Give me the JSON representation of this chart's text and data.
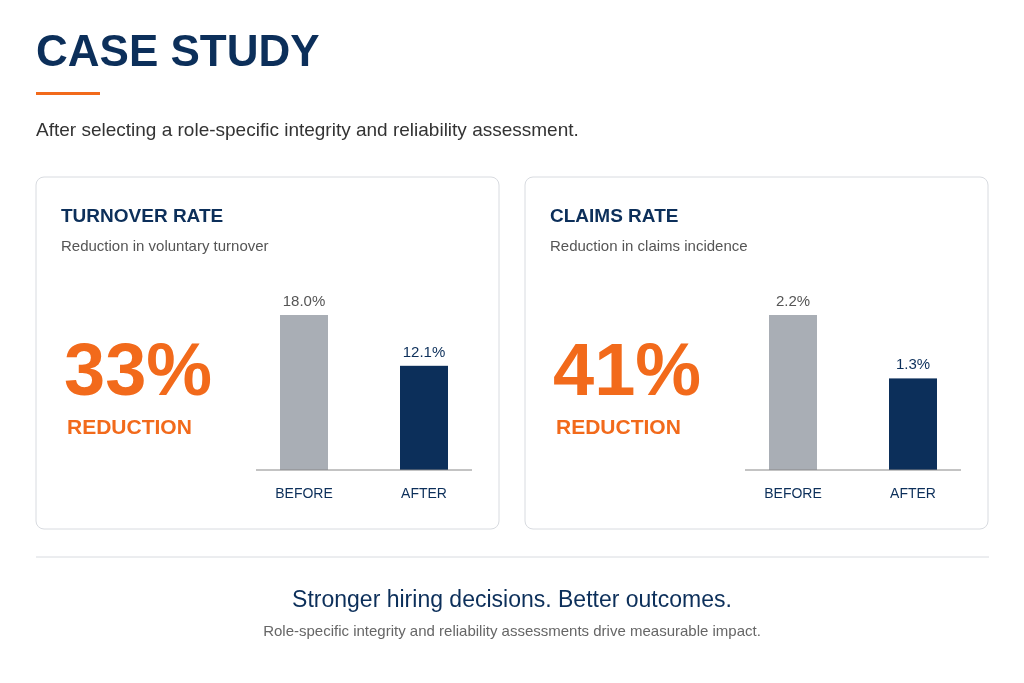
{
  "chart_data": [
    {
      "type": "other",
      "title": "CASE STUDY",
      "subtitle": "After selecting a role-specific integrity and reliability assessment."
    },
    {
      "type": "bar",
      "title": "TURNOVER RATE",
      "subtitle": "Reduction in voluntary turnover",
      "categories": [
        "BEFORE",
        "AFTER"
      ],
      "values": [
        18.0,
        12.1
      ],
      "colors": [
        "#a9aeb5",
        "#0c2f5a"
      ],
      "value_labels": [
        "18.0%",
        "12.1%"
      ],
      "annotations": [
        "33%",
        "REDUCTION"
      ]
    },
    {
      "type": "bar",
      "title": "CLAIMS RATE",
      "subtitle": "Reduction in claims incidence",
      "categories": [
        "BEFORE",
        "AFTER"
      ],
      "values": [
        2.2,
        1.3
      ],
      "colors": [
        "#a9aeb5",
        "#0c2f5a"
      ],
      "value_labels": [
        "2.2%",
        "1.3%"
      ],
      "annotations": [
        "41%",
        "REDUCTION"
      ]
    },
    {
      "type": "other",
      "title": "Stronger hiring decisions. Better outcomes.",
      "subtitle": "Role-specific integrity and reliability assessments drive measurable impact."
    }
  ]
}
